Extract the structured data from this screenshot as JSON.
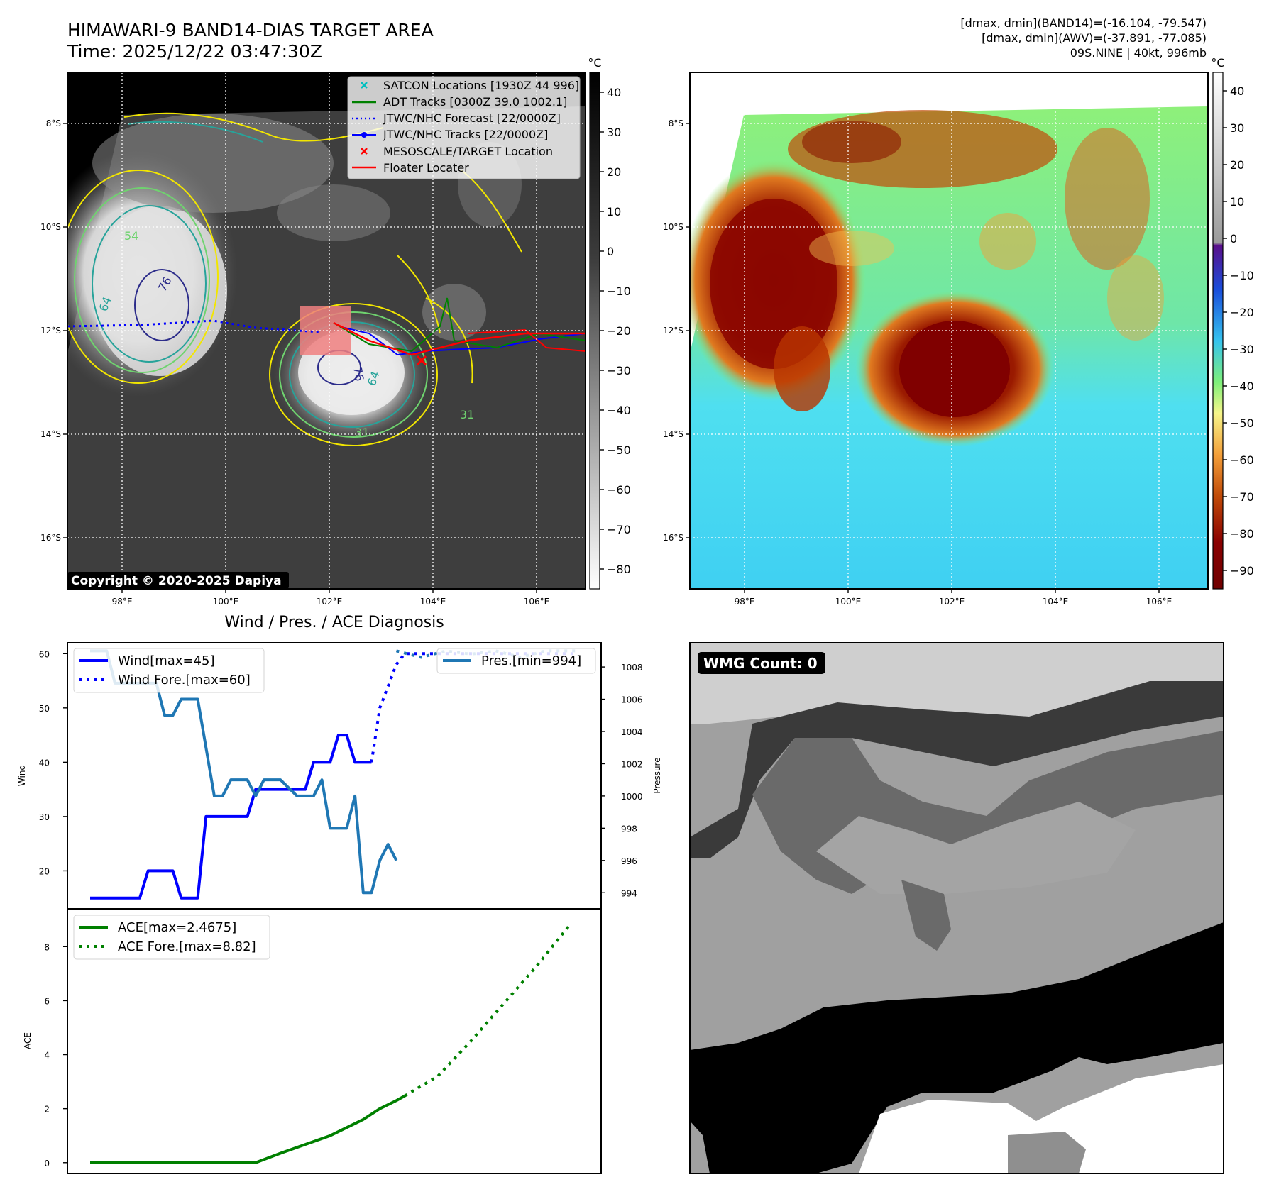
{
  "header": {
    "title": "HIMAWARI-9 BAND14-DIAS TARGET AREA",
    "time": "Time: 2025/12/22 03:47:30Z",
    "info_band14": "[dmax, dmin](BAND14)=(-16.104, -79.547)",
    "info_awv": "[dmax, dmin](AWV)=(-37.891, -77.085)",
    "storm": "09S.NINE | 40kt, 996mb"
  },
  "map": {
    "lat_labels": [
      "8°S",
      "10°S",
      "12°S",
      "14°S",
      "16°S"
    ],
    "lon_labels": [
      "98°E",
      "100°E",
      "102°E",
      "104°E",
      "106°E"
    ],
    "copyright": "Copyright © 2020-2025 Dapiya",
    "contour_labels": [
      "64",
      "76",
      "54",
      "76",
      "64",
      "31",
      "31"
    ],
    "legend": [
      {
        "label": "SATCON Locations [1930Z 44 996]",
        "color": "#00bfbf",
        "style": "x"
      },
      {
        "label": "ADT Tracks [0300Z 39.0 1002.1]",
        "color": "#008000",
        "style": "solid"
      },
      {
        "label": "JTWC/NHC Forecast [22/0000Z]",
        "color": "#0000ff",
        "style": "dotted"
      },
      {
        "label": "JTWC/NHC Tracks [22/0000Z]",
        "color": "#0000ff",
        "style": "dot-line"
      },
      {
        "label": "MESOSCALE/TARGET Location",
        "color": "#ff0000",
        "style": "x"
      },
      {
        "label": "Floater Locater",
        "color": "#ff0000",
        "style": "solid"
      }
    ]
  },
  "colorbar_gray": {
    "unit": "°C",
    "ticks": [
      "40",
      "30",
      "20",
      "10",
      "0",
      "−10",
      "−20",
      "−30",
      "−40",
      "−50",
      "−60",
      "−70",
      "−80"
    ]
  },
  "colorbar_color": {
    "unit": "°C",
    "ticks": [
      "40",
      "30",
      "20",
      "10",
      "0",
      "−10",
      "−20",
      "−30",
      "−40",
      "−50",
      "−60",
      "−70",
      "−80",
      "−90"
    ]
  },
  "wmg": {
    "label": "WMG Count: 0"
  },
  "chart_data": [
    {
      "type": "line",
      "title": "Wind / Pres. / ACE Diagnosis",
      "ylabel": "Wind",
      "ylabel2": "Pressure",
      "ylim": [
        13,
        62
      ],
      "ylim2": [
        993,
        1009.5
      ],
      "yticks": [
        20,
        30,
        40,
        50,
        60
      ],
      "yticks2": [
        994,
        996,
        998,
        1000,
        1002,
        1004,
        1006,
        1008
      ],
      "x_count": 60,
      "series": [
        {
          "name": "Wind[max=45]",
          "color": "#0000ff",
          "style": "solid",
          "points": [
            [
              0,
              15
            ],
            [
              6,
              15
            ],
            [
              7,
              20
            ],
            [
              10,
              20
            ],
            [
              11,
              15
            ],
            [
              13,
              15
            ],
            [
              14,
              30
            ],
            [
              19,
              30
            ],
            [
              20,
              35
            ],
            [
              26,
              35
            ],
            [
              27,
              40
            ],
            [
              29,
              40
            ],
            [
              30,
              45
            ],
            [
              31,
              45
            ],
            [
              32,
              40
            ],
            [
              34,
              40
            ]
          ]
        },
        {
          "name": "Wind Fore.[max=60]",
          "color": "#0000ff",
          "style": "dotted",
          "points": [
            [
              34,
              40
            ],
            [
              35,
              50
            ],
            [
              37,
              58
            ],
            [
              38,
              60
            ],
            [
              59,
              60
            ]
          ]
        },
        {
          "name": "Pres.[min=994]",
          "color": "#1f77b4",
          "style": "solid",
          "axis": "right",
          "points": [
            [
              0,
              1009
            ],
            [
              2,
              1009
            ],
            [
              3,
              1007
            ],
            [
              8,
              1007
            ],
            [
              9,
              1005
            ],
            [
              10,
              1005
            ],
            [
              11,
              1006
            ],
            [
              13,
              1006
            ],
            [
              14,
              1003
            ],
            [
              15,
              1000
            ],
            [
              16,
              1000
            ],
            [
              17,
              1001
            ],
            [
              19,
              1001
            ],
            [
              20,
              1000
            ],
            [
              21,
              1001
            ],
            [
              23,
              1001
            ],
            [
              25,
              1000
            ],
            [
              27,
              1000
            ],
            [
              28,
              1001
            ],
            [
              29,
              998
            ],
            [
              31,
              998
            ],
            [
              32,
              1000
            ],
            [
              33,
              994
            ],
            [
              34,
              994
            ],
            [
              35,
              996
            ],
            [
              36,
              997
            ],
            [
              37,
              996
            ]
          ]
        },
        {
          "name": "Pres. forecast",
          "color": "#1f77b4",
          "style": "dotted",
          "axis": "right",
          "points": [
            [
              37,
              1009
            ],
            [
              40,
              1008.6
            ],
            [
              43,
              1009
            ],
            [
              46,
              1008.8
            ],
            [
              49,
              1009
            ],
            [
              52,
              1008.6
            ],
            [
              55,
              1009
            ],
            [
              59,
              1009
            ]
          ]
        }
      ]
    },
    {
      "type": "line",
      "ylabel": "ACE",
      "ylim": [
        -0.4,
        9.4
      ],
      "yticks": [
        0,
        2,
        4,
        6,
        8
      ],
      "x_count": 60,
      "series": [
        {
          "name": "ACE[max=2.4675]",
          "color": "#008000",
          "style": "solid",
          "points": [
            [
              0,
              0
            ],
            [
              20,
              0
            ],
            [
              23,
              0.35
            ],
            [
              29,
              1.0
            ],
            [
              33,
              1.6
            ],
            [
              35,
              2.0
            ],
            [
              37,
              2.3
            ],
            [
              38,
              2.47
            ]
          ]
        },
        {
          "name": "ACE Fore.[max=8.82]",
          "color": "#008000",
          "style": "dotted",
          "points": [
            [
              38,
              2.47
            ],
            [
              42,
              3.2
            ],
            [
              46,
              4.5
            ],
            [
              50,
              5.9
            ],
            [
              54,
              7.3
            ],
            [
              58,
              8.82
            ]
          ]
        }
      ]
    }
  ]
}
